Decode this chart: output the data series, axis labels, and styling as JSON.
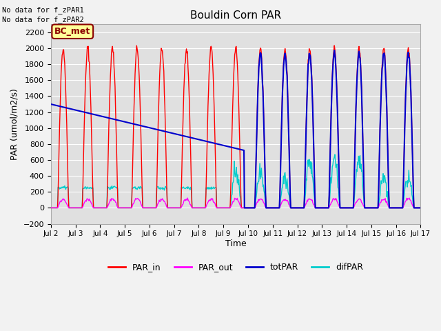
{
  "title": "Bouldin Corn PAR",
  "xlabel": "Time",
  "ylabel": "PAR (umol/m2/s)",
  "no_data_text1": "No data for f_zPAR1",
  "no_data_text2": "No data for f_zPAR2",
  "bc_met_label": "BC_met",
  "ylim": [
    -200,
    2300
  ],
  "xlim_start": 2,
  "xlim_end": 17,
  "legend_labels": [
    "PAR_in",
    "PAR_out",
    "totPAR",
    "difPAR"
  ],
  "par_in_color": "#ff0000",
  "par_out_color": "#ff00ff",
  "tot_par_color": "#0000cc",
  "dif_par_color": "#00cccc",
  "bg_color": "#e0e0e0",
  "grid_color": "#ffffff",
  "tick_labels": [
    "Jul 2",
    "Jul 3",
    "Jul 4",
    "Jul 5",
    "Jul 6",
    "Jul 7",
    "Jul 8",
    "Jul 9",
    "Jul 10",
    "Jul 11",
    "Jul 12",
    "Jul 13",
    "Jul 14",
    "Jul 15",
    "Jul 16",
    "Jul 17"
  ]
}
